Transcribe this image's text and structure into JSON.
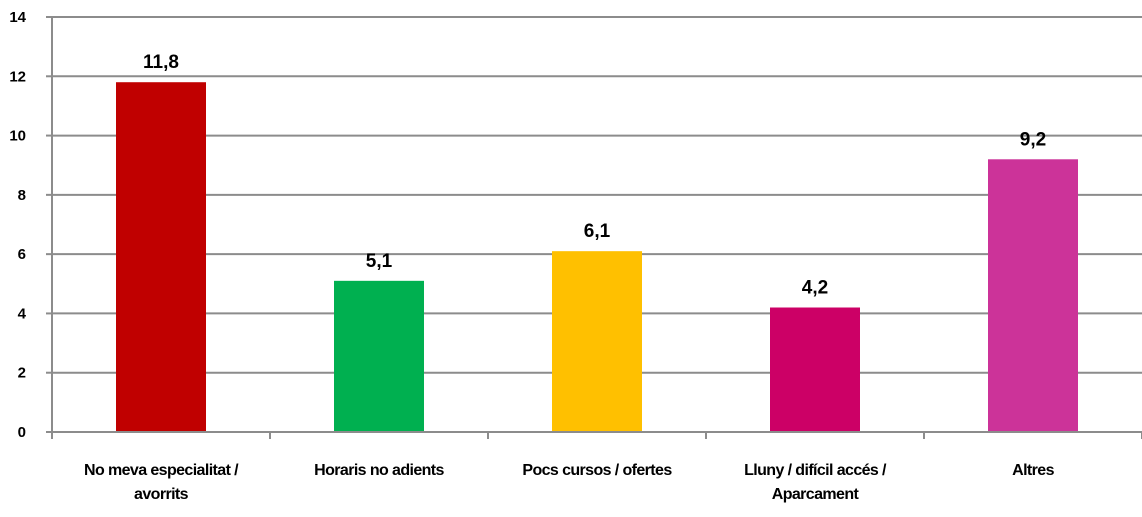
{
  "chart_data": {
    "type": "bar",
    "categories": [
      [
        "No meva especialitat /",
        "avorrits"
      ],
      [
        "Horaris no adients"
      ],
      [
        "Pocs cursos / ofertes"
      ],
      [
        "Lluny / difícil accés /",
        "Aparcament"
      ],
      [
        "Altres"
      ]
    ],
    "values": [
      11.8,
      5.1,
      6.1,
      4.2,
      9.2
    ],
    "value_labels": [
      "11,8",
      "5,1",
      "6,1",
      "4,2",
      "9,2"
    ],
    "colors": [
      "#c00000",
      "#00b050",
      "#ffc000",
      "#cc0066",
      "#cc3399"
    ],
    "ylim": [
      0,
      14
    ],
    "yticks": [
      "0",
      "2",
      "4",
      "6",
      "8",
      "10",
      "12",
      "14"
    ],
    "grid": true,
    "legend": "none",
    "title": "",
    "xlabel": "",
    "ylabel": ""
  }
}
